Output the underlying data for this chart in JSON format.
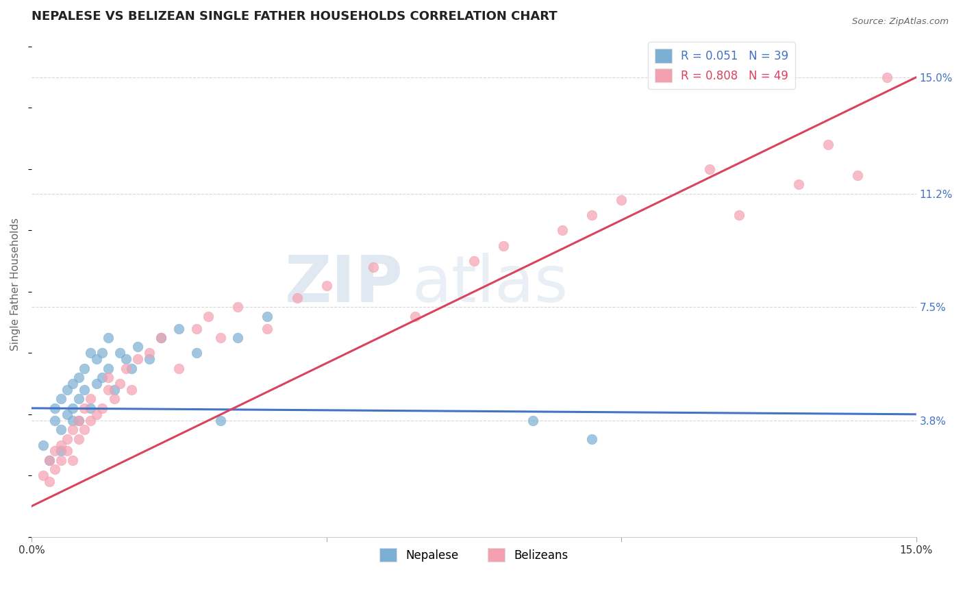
{
  "title": "NEPALESE VS BELIZEAN SINGLE FATHER HOUSEHOLDS CORRELATION CHART",
  "source": "Source: ZipAtlas.com",
  "ylabel": "Single Father Households",
  "ytick_labels": [
    "3.8%",
    "7.5%",
    "11.2%",
    "15.0%"
  ],
  "ytick_values": [
    0.038,
    0.075,
    0.112,
    0.15
  ],
  "xlim": [
    0.0,
    0.15
  ],
  "ylim": [
    0.0,
    0.165
  ],
  "legend_nepalese": "R = 0.051   N = 39",
  "legend_belizeans": "R = 0.808   N = 49",
  "nepalese_color": "#7bafd4",
  "belizeans_color": "#f4a0b0",
  "nepalese_line_color": "#4472c4",
  "belizeans_line_color": "#d9435e",
  "watermark_zip": "ZIP",
  "watermark_atlas": "atlas",
  "background_color": "#ffffff",
  "grid_color": "#cccccc",
  "nepalese_x": [
    0.002,
    0.003,
    0.004,
    0.004,
    0.005,
    0.005,
    0.005,
    0.006,
    0.006,
    0.007,
    0.007,
    0.007,
    0.008,
    0.008,
    0.008,
    0.009,
    0.009,
    0.01,
    0.01,
    0.011,
    0.011,
    0.012,
    0.012,
    0.013,
    0.013,
    0.014,
    0.015,
    0.016,
    0.017,
    0.018,
    0.02,
    0.022,
    0.025,
    0.028,
    0.032,
    0.035,
    0.04,
    0.085,
    0.095
  ],
  "nepalese_y": [
    0.03,
    0.025,
    0.038,
    0.042,
    0.028,
    0.035,
    0.045,
    0.04,
    0.048,
    0.038,
    0.042,
    0.05,
    0.045,
    0.052,
    0.038,
    0.048,
    0.055,
    0.042,
    0.06,
    0.05,
    0.058,
    0.052,
    0.06,
    0.055,
    0.065,
    0.048,
    0.06,
    0.058,
    0.055,
    0.062,
    0.058,
    0.065,
    0.068,
    0.06,
    0.038,
    0.065,
    0.072,
    0.038,
    0.032
  ],
  "belizeans_x": [
    0.002,
    0.003,
    0.003,
    0.004,
    0.004,
    0.005,
    0.005,
    0.006,
    0.006,
    0.007,
    0.007,
    0.008,
    0.008,
    0.009,
    0.009,
    0.01,
    0.01,
    0.011,
    0.012,
    0.013,
    0.013,
    0.014,
    0.015,
    0.016,
    0.017,
    0.018,
    0.02,
    0.022,
    0.025,
    0.028,
    0.03,
    0.032,
    0.035,
    0.04,
    0.045,
    0.05,
    0.058,
    0.065,
    0.075,
    0.08,
    0.09,
    0.095,
    0.1,
    0.115,
    0.12,
    0.13,
    0.135,
    0.14,
    0.145
  ],
  "belizeans_y": [
    0.02,
    0.025,
    0.018,
    0.028,
    0.022,
    0.03,
    0.025,
    0.032,
    0.028,
    0.035,
    0.025,
    0.038,
    0.032,
    0.035,
    0.042,
    0.038,
    0.045,
    0.04,
    0.042,
    0.048,
    0.052,
    0.045,
    0.05,
    0.055,
    0.048,
    0.058,
    0.06,
    0.065,
    0.055,
    0.068,
    0.072,
    0.065,
    0.075,
    0.068,
    0.078,
    0.082,
    0.088,
    0.072,
    0.09,
    0.095,
    0.1,
    0.105,
    0.11,
    0.12,
    0.105,
    0.115,
    0.128,
    0.118,
    0.15
  ],
  "nep_line_x0": 0.0,
  "nep_line_x1": 0.15,
  "nep_line_y0": 0.042,
  "nep_line_y1": 0.04,
  "bel_line_x0": 0.0,
  "bel_line_x1": 0.15,
  "bel_line_y0": 0.01,
  "bel_line_y1": 0.15
}
